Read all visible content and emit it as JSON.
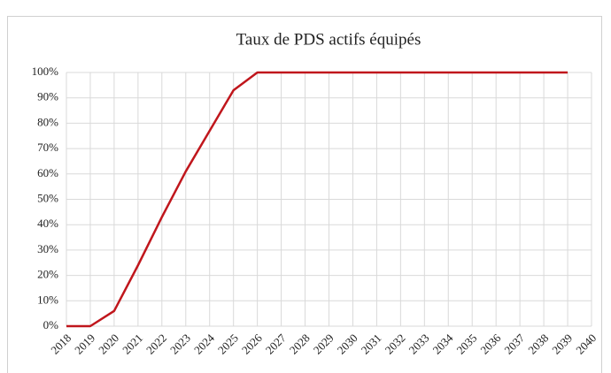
{
  "chart_data": {
    "type": "line",
    "title": "Taux de PDS actifs équipés",
    "categories": [
      "2018",
      "2019",
      "2020",
      "2021",
      "2022",
      "2023",
      "2024",
      "2025",
      "2026",
      "2027",
      "2028",
      "2029",
      "2030",
      "2031",
      "2032",
      "2033",
      "2034",
      "2035",
      "2036",
      "2037",
      "2038",
      "2039",
      "2040"
    ],
    "series": [
      {
        "name": "Taux de PDS actifs équipés",
        "color": "#c0161c",
        "values": [
          0,
          0,
          6,
          24,
          43,
          61,
          77,
          93,
          100,
          100,
          100,
          100,
          100,
          100,
          100,
          100,
          100,
          100,
          100,
          100,
          100,
          100,
          null
        ]
      }
    ],
    "ylim": [
      0,
      100
    ],
    "yticks": [
      {
        "value": 0,
        "label": "0%"
      },
      {
        "value": 10,
        "label": "10%"
      },
      {
        "value": 20,
        "label": "20%"
      },
      {
        "value": 30,
        "label": "30%"
      },
      {
        "value": 40,
        "label": "40%"
      },
      {
        "value": 50,
        "label": "50%"
      },
      {
        "value": 60,
        "label": "60%"
      },
      {
        "value": 70,
        "label": "70%"
      },
      {
        "value": 80,
        "label": "80%"
      },
      {
        "value": 90,
        "label": "90%"
      },
      {
        "value": 100,
        "label": "100%"
      }
    ],
    "grid": true
  }
}
